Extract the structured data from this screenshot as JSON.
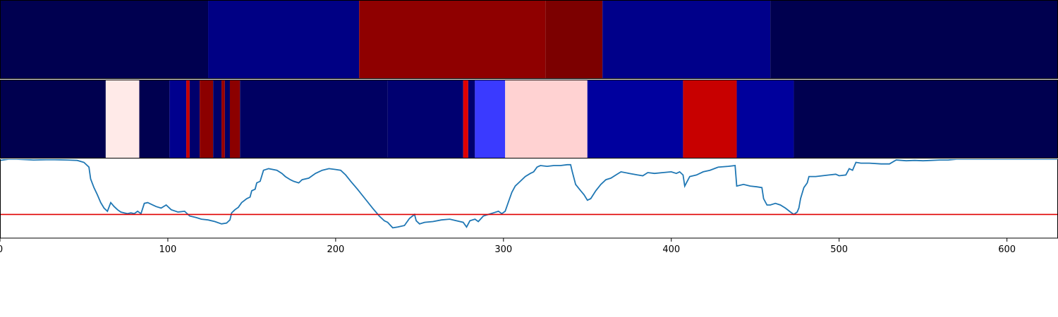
{
  "chart_data": {
    "type": "heatmap",
    "xlim": [
      0,
      630
    ],
    "xticks": [
      0,
      100,
      200,
      300,
      400,
      500,
      600
    ],
    "xtick_labels": [
      "0",
      "100",
      "200",
      "300",
      "400",
      "500",
      "600"
    ],
    "grid": false,
    "tracks": [
      {
        "segments": [
          {
            "start": 0,
            "end": 124,
            "color": "#000050"
          },
          {
            "start": 124,
            "end": 214,
            "color": "#000084"
          },
          {
            "start": 214,
            "end": 325,
            "color": "#8f0000"
          },
          {
            "start": 325,
            "end": 359,
            "color": "#7c0000"
          },
          {
            "start": 359,
            "end": 459,
            "color": "#00008a"
          },
          {
            "start": 459,
            "end": 630,
            "color": "#00004f"
          }
        ]
      },
      {
        "segments": [
          {
            "start": 0,
            "end": 63,
            "color": "#00004f"
          },
          {
            "start": 63,
            "end": 83,
            "color": "#ffeae8"
          },
          {
            "start": 83,
            "end": 101,
            "color": "#000050"
          },
          {
            "start": 101,
            "end": 111,
            "color": "#00008e"
          },
          {
            "start": 111,
            "end": 113,
            "color": "#c80000"
          },
          {
            "start": 113,
            "end": 119,
            "color": "#00006c"
          },
          {
            "start": 119,
            "end": 127,
            "color": "#8c0000"
          },
          {
            "start": 127,
            "end": 132,
            "color": "#000068"
          },
          {
            "start": 132,
            "end": 134,
            "color": "#980000"
          },
          {
            "start": 134,
            "end": 137,
            "color": "#000068"
          },
          {
            "start": 137,
            "end": 143,
            "color": "#8c0000"
          },
          {
            "start": 143,
            "end": 231,
            "color": "#000062"
          },
          {
            "start": 231,
            "end": 276,
            "color": "#000070"
          },
          {
            "start": 276,
            "end": 279,
            "color": "#e00000"
          },
          {
            "start": 279,
            "end": 283,
            "color": "#000070"
          },
          {
            "start": 283,
            "end": 301,
            "color": "#3a3aff"
          },
          {
            "start": 301,
            "end": 350,
            "color": "#ffd2d2"
          },
          {
            "start": 350,
            "end": 407,
            "color": "#00009e"
          },
          {
            "start": 407,
            "end": 439,
            "color": "#c80000"
          },
          {
            "start": 439,
            "end": 473,
            "color": "#00009c"
          },
          {
            "start": 473,
            "end": 630,
            "color": "#000050"
          }
        ]
      }
    ],
    "line": {
      "color": "#1f77b4",
      "ylim": [
        0,
        1
      ],
      "threshold": 0.3,
      "threshold_color": "#e00000",
      "points": [
        [
          0,
          0.985
        ],
        [
          5,
          1.0
        ],
        [
          10,
          1.0
        ],
        [
          20,
          0.99
        ],
        [
          30,
          0.995
        ],
        [
          40,
          0.99
        ],
        [
          46,
          0.985
        ],
        [
          50,
          0.96
        ],
        [
          53,
          0.9
        ],
        [
          54,
          0.75
        ],
        [
          56,
          0.64
        ],
        [
          58,
          0.55
        ],
        [
          60,
          0.45
        ],
        [
          62,
          0.38
        ],
        [
          64,
          0.34
        ],
        [
          66,
          0.45
        ],
        [
          68,
          0.4
        ],
        [
          70,
          0.36
        ],
        [
          72,
          0.33
        ],
        [
          74,
          0.32
        ],
        [
          76,
          0.31
        ],
        [
          78,
          0.32
        ],
        [
          80,
          0.31
        ],
        [
          82,
          0.34
        ],
        [
          84,
          0.31
        ],
        [
          86,
          0.44
        ],
        [
          88,
          0.45
        ],
        [
          90,
          0.43
        ],
        [
          93,
          0.4
        ],
        [
          96,
          0.38
        ],
        [
          99,
          0.42
        ],
        [
          102,
          0.36
        ],
        [
          106,
          0.33
        ],
        [
          110,
          0.34
        ],
        [
          113,
          0.28
        ],
        [
          117,
          0.26
        ],
        [
          120,
          0.24
        ],
        [
          124,
          0.23
        ],
        [
          128,
          0.21
        ],
        [
          132,
          0.18
        ],
        [
          135,
          0.19
        ],
        [
          137,
          0.23
        ],
        [
          138,
          0.32
        ],
        [
          140,
          0.36
        ],
        [
          142,
          0.39
        ],
        [
          144,
          0.45
        ],
        [
          147,
          0.5
        ],
        [
          149,
          0.52
        ],
        [
          150,
          0.6
        ],
        [
          152,
          0.62
        ],
        [
          153,
          0.7
        ],
        [
          155,
          0.72
        ],
        [
          157,
          0.86
        ],
        [
          160,
          0.88
        ],
        [
          165,
          0.86
        ],
        [
          168,
          0.82
        ],
        [
          170,
          0.78
        ],
        [
          173,
          0.74
        ],
        [
          175,
          0.72
        ],
        [
          178,
          0.7
        ],
        [
          180,
          0.74
        ],
        [
          184,
          0.76
        ],
        [
          188,
          0.82
        ],
        [
          192,
          0.86
        ],
        [
          196,
          0.88
        ],
        [
          200,
          0.87
        ],
        [
          203,
          0.86
        ],
        [
          206,
          0.8
        ],
        [
          209,
          0.72
        ],
        [
          213,
          0.62
        ],
        [
          216,
          0.54
        ],
        [
          219,
          0.46
        ],
        [
          222,
          0.38
        ],
        [
          226,
          0.28
        ],
        [
          229,
          0.22
        ],
        [
          231,
          0.2
        ],
        [
          234,
          0.13
        ],
        [
          237,
          0.14
        ],
        [
          241,
          0.16
        ],
        [
          244,
          0.25
        ],
        [
          247,
          0.3
        ],
        [
          248,
          0.22
        ],
        [
          250,
          0.18
        ],
        [
          253,
          0.2
        ],
        [
          258,
          0.21
        ],
        [
          263,
          0.23
        ],
        [
          268,
          0.24
        ],
        [
          272,
          0.22
        ],
        [
          276,
          0.2
        ],
        [
          278,
          0.14
        ],
        [
          280,
          0.22
        ],
        [
          283,
          0.24
        ],
        [
          285,
          0.21
        ],
        [
          288,
          0.28
        ],
        [
          291,
          0.3
        ],
        [
          294,
          0.32
        ],
        [
          297,
          0.34
        ],
        [
          299,
          0.31
        ],
        [
          301,
          0.34
        ],
        [
          303,
          0.46
        ],
        [
          305,
          0.58
        ],
        [
          307,
          0.66
        ],
        [
          310,
          0.72
        ],
        [
          313,
          0.78
        ],
        [
          316,
          0.82
        ],
        [
          318,
          0.84
        ],
        [
          320,
          0.9
        ],
        [
          322,
          0.92
        ],
        [
          326,
          0.91
        ],
        [
          330,
          0.92
        ],
        [
          334,
          0.92
        ],
        [
          338,
          0.93
        ],
        [
          340,
          0.93
        ],
        [
          341,
          0.84
        ],
        [
          343,
          0.68
        ],
        [
          346,
          0.6
        ],
        [
          348,
          0.55
        ],
        [
          350,
          0.48
        ],
        [
          352,
          0.5
        ],
        [
          355,
          0.6
        ],
        [
          358,
          0.68
        ],
        [
          361,
          0.74
        ],
        [
          364,
          0.76
        ],
        [
          367,
          0.8
        ],
        [
          370,
          0.84
        ],
        [
          375,
          0.82
        ],
        [
          380,
          0.8
        ],
        [
          383,
          0.79
        ],
        [
          386,
          0.83
        ],
        [
          390,
          0.82
        ],
        [
          395,
          0.83
        ],
        [
          400,
          0.84
        ],
        [
          403,
          0.82
        ],
        [
          405,
          0.84
        ],
        [
          407,
          0.8
        ],
        [
          408,
          0.66
        ],
        [
          411,
          0.78
        ],
        [
          415,
          0.8
        ],
        [
          419,
          0.84
        ],
        [
          423,
          0.86
        ],
        [
          428,
          0.9
        ],
        [
          434,
          0.91
        ],
        [
          438,
          0.92
        ],
        [
          439,
          0.66
        ],
        [
          443,
          0.68
        ],
        [
          447,
          0.66
        ],
        [
          451,
          0.65
        ],
        [
          454,
          0.64
        ],
        [
          455,
          0.5
        ],
        [
          457,
          0.42
        ],
        [
          459,
          0.42
        ],
        [
          462,
          0.44
        ],
        [
          465,
          0.42
        ],
        [
          468,
          0.38
        ],
        [
          471,
          0.33
        ],
        [
          473,
          0.3
        ],
        [
          475,
          0.33
        ],
        [
          476,
          0.38
        ],
        [
          477,
          0.5
        ],
        [
          479,
          0.64
        ],
        [
          481,
          0.7
        ],
        [
          482,
          0.78
        ],
        [
          486,
          0.78
        ],
        [
          490,
          0.79
        ],
        [
          494,
          0.8
        ],
        [
          498,
          0.81
        ],
        [
          500,
          0.79
        ],
        [
          504,
          0.8
        ],
        [
          506,
          0.88
        ],
        [
          508,
          0.86
        ],
        [
          510,
          0.96
        ],
        [
          513,
          0.95
        ],
        [
          518,
          0.95
        ],
        [
          525,
          0.94
        ],
        [
          530,
          0.94
        ],
        [
          534,
          0.99
        ],
        [
          540,
          0.98
        ],
        [
          545,
          0.985
        ],
        [
          550,
          0.98
        ],
        [
          555,
          0.985
        ],
        [
          560,
          0.99
        ],
        [
          565,
          0.99
        ],
        [
          570,
          1.0
        ],
        [
          580,
          1.0
        ],
        [
          600,
          1.0
        ],
        [
          630,
          1.0
        ]
      ]
    }
  }
}
